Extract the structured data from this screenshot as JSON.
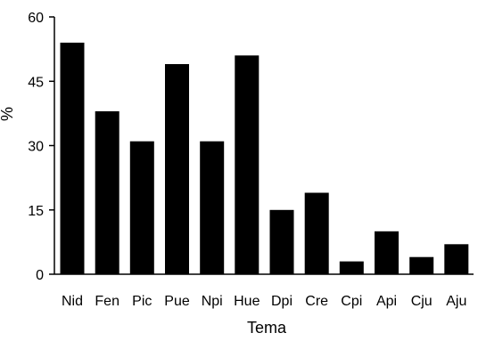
{
  "chart_data": {
    "type": "bar",
    "categories": [
      "Nid",
      "Fen",
      "Pic",
      "Pue",
      "Npi",
      "Hue",
      "Dpi",
      "Cre",
      "Cpi",
      "Api",
      "Cju",
      "Aju"
    ],
    "values": [
      54,
      38,
      31,
      49,
      31,
      51,
      15,
      19,
      3,
      10,
      4,
      7
    ],
    "xlabel": "Tema",
    "ylabel": "%",
    "ylim": [
      0,
      60
    ],
    "yticks": [
      0,
      15,
      30,
      45,
      60
    ],
    "grid": false,
    "bar_color": "#000000"
  }
}
